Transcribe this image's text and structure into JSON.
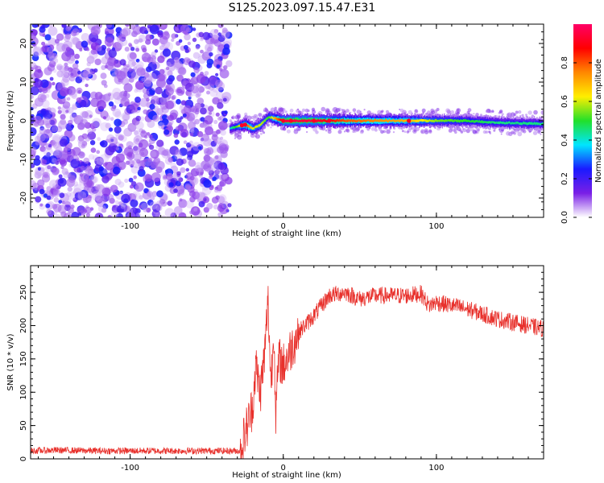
{
  "title": "S125.2023.097.15.47.E31",
  "colors": {
    "snr_line": "#e8312c",
    "scatter_purple": "#7a1fe6",
    "frame": "#000000"
  },
  "chart_data": [
    {
      "type": "heatmap",
      "xlabel": "Height of straight line (km)",
      "ylabel": "Frequency (Hz)",
      "xlim": [
        -165,
        170
      ],
      "ylim": [
        -25,
        25
      ],
      "x_ticks": [
        -100,
        0,
        100
      ],
      "x_tick_labels": [
        "-100",
        "0",
        "100"
      ],
      "y_ticks": [
        -20,
        -10,
        0,
        10,
        20
      ],
      "y_tick_labels": [
        "-20",
        "-10",
        "0",
        "10",
        "20"
      ],
      "noise_region_x": [
        -165,
        -35
      ],
      "ridge": {
        "x": [
          -35,
          -30,
          -25,
          -20,
          -15,
          -10,
          -5,
          0,
          20,
          40,
          60,
          80,
          100,
          120,
          140,
          160,
          170
        ],
        "frequency": [
          -2,
          -1.5,
          -1,
          -2,
          -1,
          1,
          0.5,
          0,
          0,
          0,
          0,
          0,
          0,
          0,
          -0.5,
          -0.7,
          -0.8
        ],
        "amplitude": [
          0.4,
          0.55,
          0.85,
          0.6,
          0.6,
          0.5,
          0.75,
          0.95,
          0.95,
          0.8,
          0.75,
          0.7,
          0.55,
          0.5,
          0.45,
          0.45,
          0.45
        ]
      },
      "colorbar": {
        "label": "Normalized spectral amplitude",
        "range": [
          0,
          1
        ],
        "ticks": [
          0.0,
          0.2,
          0.4,
          0.6,
          0.8
        ],
        "tick_labels": [
          "0.0",
          "0.2",
          "0.4",
          "0.6",
          "0.8"
        ],
        "stops": [
          "#ffffff",
          "#7a1fe6",
          "#1a1aff",
          "#00e5ff",
          "#22e02a",
          "#ffee00",
          "#ff8800",
          "#ff0000",
          "#ff0066"
        ]
      }
    },
    {
      "type": "line",
      "xlabel": "Height of straight line (km)",
      "ylabel": "SNR (10 * v/v)",
      "xlim": [
        -165,
        170
      ],
      "ylim": [
        0,
        290
      ],
      "x_ticks": [
        -100,
        0,
        100
      ],
      "x_tick_labels": [
        "-100",
        "0",
        "100"
      ],
      "y_ticks": [
        0,
        50,
        100,
        150,
        200,
        250
      ],
      "y_tick_labels": [
        "0",
        "50",
        "100",
        "150",
        "200",
        "250"
      ],
      "series": [
        {
          "x": [
            -165,
            -150,
            -120,
            -80,
            -50,
            -28,
            -20,
            -18,
            -15,
            -12,
            -10,
            -8,
            -6,
            -5,
            -3,
            0,
            10,
            20,
            30,
            40,
            50,
            60,
            70,
            80,
            90,
            95,
            100,
            120,
            140,
            160,
            170
          ],
          "y": [
            12,
            13,
            12,
            12,
            12,
            12,
            80,
            140,
            100,
            160,
            240,
            110,
            200,
            60,
            150,
            140,
            190,
            215,
            245,
            250,
            240,
            245,
            245,
            245,
            248,
            230,
            235,
            225,
            210,
            200,
            195
          ]
        }
      ]
    }
  ]
}
